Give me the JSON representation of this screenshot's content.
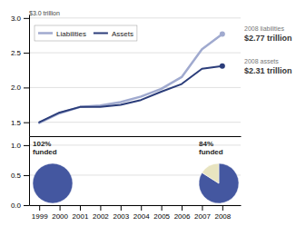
{
  "chart_data": [
    {
      "type": "line",
      "x": [
        1999,
        2000,
        2001,
        2002,
        2003,
        2004,
        2005,
        2006,
        2007,
        2008
      ],
      "xlim": [
        1998.5,
        2008.9
      ],
      "series": [
        {
          "name": "Liabilities",
          "color": "#a0aacf",
          "values": [
            1.49,
            1.63,
            1.72,
            1.74,
            1.79,
            1.87,
            1.98,
            2.15,
            2.55,
            2.77
          ]
        },
        {
          "name": "Assets",
          "color": "#2b3d7a",
          "values": [
            1.5,
            1.64,
            1.72,
            1.72,
            1.75,
            1.82,
            1.94,
            2.05,
            2.27,
            2.31
          ]
        }
      ],
      "ylim": [
        1.3,
        3.05
      ],
      "yticks": [
        1.5,
        {
          "value": 2.0,
          "label": "2.0"
        },
        2.5,
        {
          "value": 3.0,
          "label": "3.0"
        }
      ],
      "grid": true,
      "legend": "upper left",
      "tick_labels": "y",
      "annotations": [
        "$3.0 trillion",
        "2008 liabilities",
        "$2.77 trillion",
        "2008 assets",
        "$2.31 trillion"
      ]
    },
    {
      "type": "pie",
      "xlim": [
        1998.5,
        2008.9
      ],
      "xticks": [
        1999,
        2000,
        2001,
        2002,
        2003,
        2004,
        2005,
        2006,
        2007,
        2008
      ],
      "ylim": [
        0,
        1.15
      ],
      "yticks": [
        {
          "value": 0,
          "label": "0.0"
        },
        0.5,
        {
          "value": 1.0,
          "label": "1.0"
        }
      ],
      "grid": true,
      "series": [
        {
          "values": [
            1.0
          ],
          "colors": [
            "#4457a0"
          ]
        },
        {
          "values": [
            0.84,
            0.16
          ],
          "colors": [
            "#4457a0",
            "#e8e4c0"
          ]
        }
      ],
      "annotations": [
        "102%\nfunded",
        "84%\nfunded"
      ]
    }
  ]
}
